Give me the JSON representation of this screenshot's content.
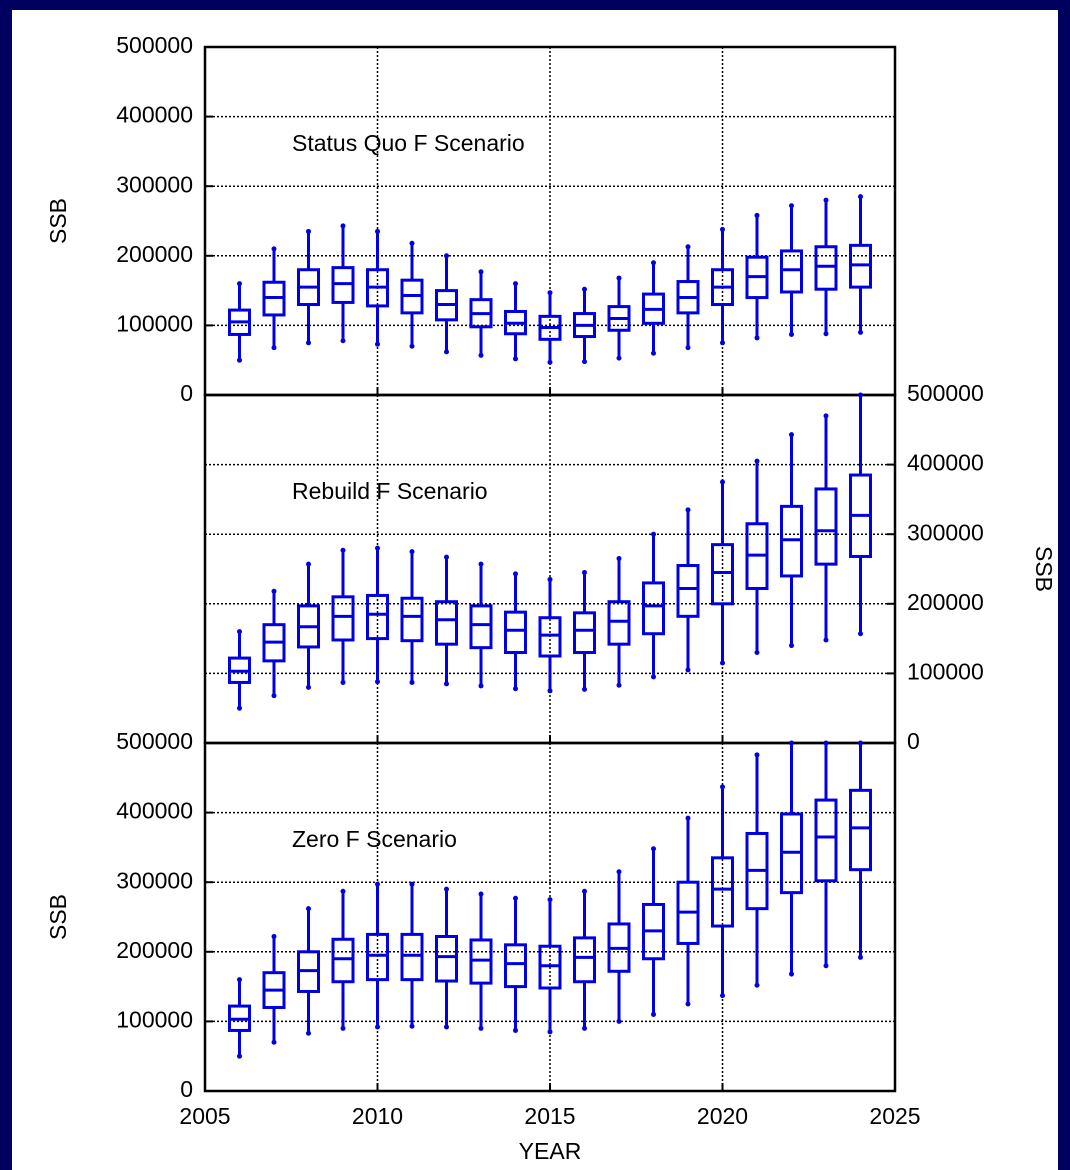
{
  "chart_data": [
    {
      "type": "box",
      "annotation": "Status Quo F Scenario",
      "ylabel": "SSB",
      "ylabel_side": "left",
      "color": "#0000e0",
      "grid": true,
      "x": [
        2006,
        2007,
        2008,
        2009,
        2010,
        2011,
        2012,
        2013,
        2014,
        2015,
        2016,
        2017,
        2018,
        2019,
        2020,
        2021,
        2022,
        2023,
        2024
      ],
      "xlim": [
        2005,
        2025
      ],
      "xticks": [
        2005,
        2010,
        2015,
        2020,
        2025
      ],
      "ylim": [
        0,
        500000
      ],
      "yticks": [
        0,
        100000,
        200000,
        300000,
        400000,
        500000
      ],
      "whisker_low": [
        50000,
        68000,
        75000,
        78000,
        73000,
        70000,
        62000,
        57000,
        52000,
        47000,
        48000,
        53000,
        60000,
        68000,
        75000,
        82000,
        87000,
        88000,
        90000
      ],
      "q1": [
        87000,
        115000,
        130000,
        133000,
        128000,
        118000,
        108000,
        98000,
        88000,
        80000,
        84000,
        93000,
        103000,
        118000,
        130000,
        140000,
        148000,
        152000,
        155000
      ],
      "median": [
        105000,
        140000,
        155000,
        160000,
        155000,
        143000,
        130000,
        117000,
        103000,
        97000,
        100000,
        110000,
        123000,
        140000,
        155000,
        170000,
        180000,
        185000,
        187000
      ],
      "q3": [
        122000,
        162000,
        180000,
        183000,
        180000,
        165000,
        150000,
        137000,
        120000,
        113000,
        117000,
        127000,
        145000,
        163000,
        180000,
        198000,
        207000,
        213000,
        215000
      ],
      "whisker_high": [
        160000,
        210000,
        235000,
        243000,
        235000,
        218000,
        200000,
        177000,
        160000,
        147000,
        152000,
        168000,
        190000,
        213000,
        238000,
        258000,
        272000,
        280000,
        285000
      ]
    },
    {
      "type": "box",
      "annotation": "Rebuild F Scenario",
      "ylabel": "SSB",
      "ylabel_side": "right",
      "color": "#0000e0",
      "grid": true,
      "x": [
        2006,
        2007,
        2008,
        2009,
        2010,
        2011,
        2012,
        2013,
        2014,
        2015,
        2016,
        2017,
        2018,
        2019,
        2020,
        2021,
        2022,
        2023,
        2024
      ],
      "xlim": [
        2005,
        2025
      ],
      "xticks": [
        2005,
        2010,
        2015,
        2020,
        2025
      ],
      "ylim": [
        0,
        500000
      ],
      "yticks": [
        0,
        100000,
        200000,
        300000,
        400000,
        500000
      ],
      "whisker_low": [
        50000,
        68000,
        80000,
        87000,
        88000,
        87000,
        85000,
        82000,
        78000,
        75000,
        77000,
        83000,
        95000,
        105000,
        115000,
        130000,
        140000,
        148000,
        157000
      ],
      "q1": [
        87000,
        118000,
        138000,
        148000,
        150000,
        147000,
        142000,
        137000,
        130000,
        125000,
        130000,
        142000,
        157000,
        182000,
        200000,
        222000,
        240000,
        257000,
        268000
      ],
      "median": [
        103000,
        145000,
        167000,
        182000,
        185000,
        182000,
        177000,
        170000,
        162000,
        155000,
        162000,
        175000,
        197000,
        222000,
        245000,
        270000,
        292000,
        305000,
        327000
      ],
      "q3": [
        122000,
        170000,
        197000,
        210000,
        212000,
        208000,
        203000,
        197000,
        188000,
        180000,
        187000,
        203000,
        230000,
        255000,
        285000,
        315000,
        340000,
        365000,
        385000
      ],
      "whisker_high": [
        160000,
        218000,
        257000,
        277000,
        280000,
        275000,
        267000,
        257000,
        243000,
        235000,
        245000,
        265000,
        300000,
        335000,
        375000,
        405000,
        443000,
        470000,
        500000
      ]
    },
    {
      "type": "box",
      "annotation": "Zero F Scenario",
      "ylabel": "SSB",
      "ylabel_side": "left",
      "xlabel": "YEAR",
      "color": "#0000e0",
      "grid": true,
      "x": [
        2006,
        2007,
        2008,
        2009,
        2010,
        2011,
        2012,
        2013,
        2014,
        2015,
        2016,
        2017,
        2018,
        2019,
        2020,
        2021,
        2022,
        2023,
        2024
      ],
      "xlim": [
        2005,
        2025
      ],
      "xticks": [
        2005,
        2010,
        2015,
        2020,
        2025
      ],
      "ylim": [
        0,
        500000
      ],
      "yticks": [
        0,
        100000,
        200000,
        300000,
        400000,
        500000
      ],
      "whisker_low": [
        50000,
        70000,
        83000,
        90000,
        92000,
        93000,
        92000,
        90000,
        87000,
        85000,
        90000,
        100000,
        110000,
        125000,
        137000,
        152000,
        168000,
        180000,
        192000
      ],
      "q1": [
        87000,
        120000,
        143000,
        157000,
        160000,
        160000,
        158000,
        155000,
        150000,
        148000,
        157000,
        172000,
        190000,
        212000,
        237000,
        262000,
        285000,
        302000,
        318000
      ],
      "median": [
        103000,
        145000,
        173000,
        190000,
        195000,
        195000,
        193000,
        188000,
        183000,
        180000,
        192000,
        205000,
        230000,
        257000,
        290000,
        317000,
        343000,
        365000,
        378000
      ],
      "q3": [
        122000,
        170000,
        200000,
        218000,
        225000,
        225000,
        222000,
        217000,
        210000,
        208000,
        220000,
        240000,
        268000,
        300000,
        335000,
        370000,
        398000,
        418000,
        432000
      ],
      "whisker_high": [
        160000,
        222000,
        262000,
        287000,
        297000,
        297000,
        290000,
        283000,
        277000,
        275000,
        287000,
        315000,
        348000,
        392000,
        437000,
        483000,
        500000,
        500000,
        500000
      ]
    }
  ]
}
